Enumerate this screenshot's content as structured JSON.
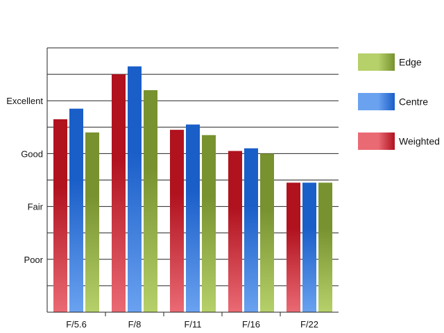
{
  "chart_data": {
    "type": "bar",
    "categories": [
      "F/5.6",
      "F/8",
      "F/11",
      "F/16",
      "F/22"
    ],
    "series": [
      {
        "name": "Weighted",
        "values": [
          7.3,
          9.0,
          6.9,
          6.1,
          4.9
        ],
        "color_dark": "#b0121e",
        "color_light": "#ea6a74"
      },
      {
        "name": "Centre",
        "values": [
          7.7,
          9.3,
          7.1,
          6.2,
          4.9
        ],
        "color_dark": "#1a5ec8",
        "color_light": "#6aa2f0"
      },
      {
        "name": "Edge",
        "values": [
          6.8,
          8.4,
          6.7,
          6.0,
          4.9
        ],
        "color_dark": "#789230",
        "color_light": "#b6d06a"
      }
    ],
    "ylim": [
      0,
      10
    ],
    "y_ticks": [
      {
        "value": 2,
        "label": "Poor"
      },
      {
        "value": 4,
        "label": "Fair"
      },
      {
        "value": 6,
        "label": "Good"
      },
      {
        "value": 8,
        "label": "Excellent"
      }
    ],
    "grid": true,
    "legend": {
      "placement": "top-right",
      "entries": [
        "Edge",
        "Centre",
        "Weighted"
      ]
    }
  }
}
